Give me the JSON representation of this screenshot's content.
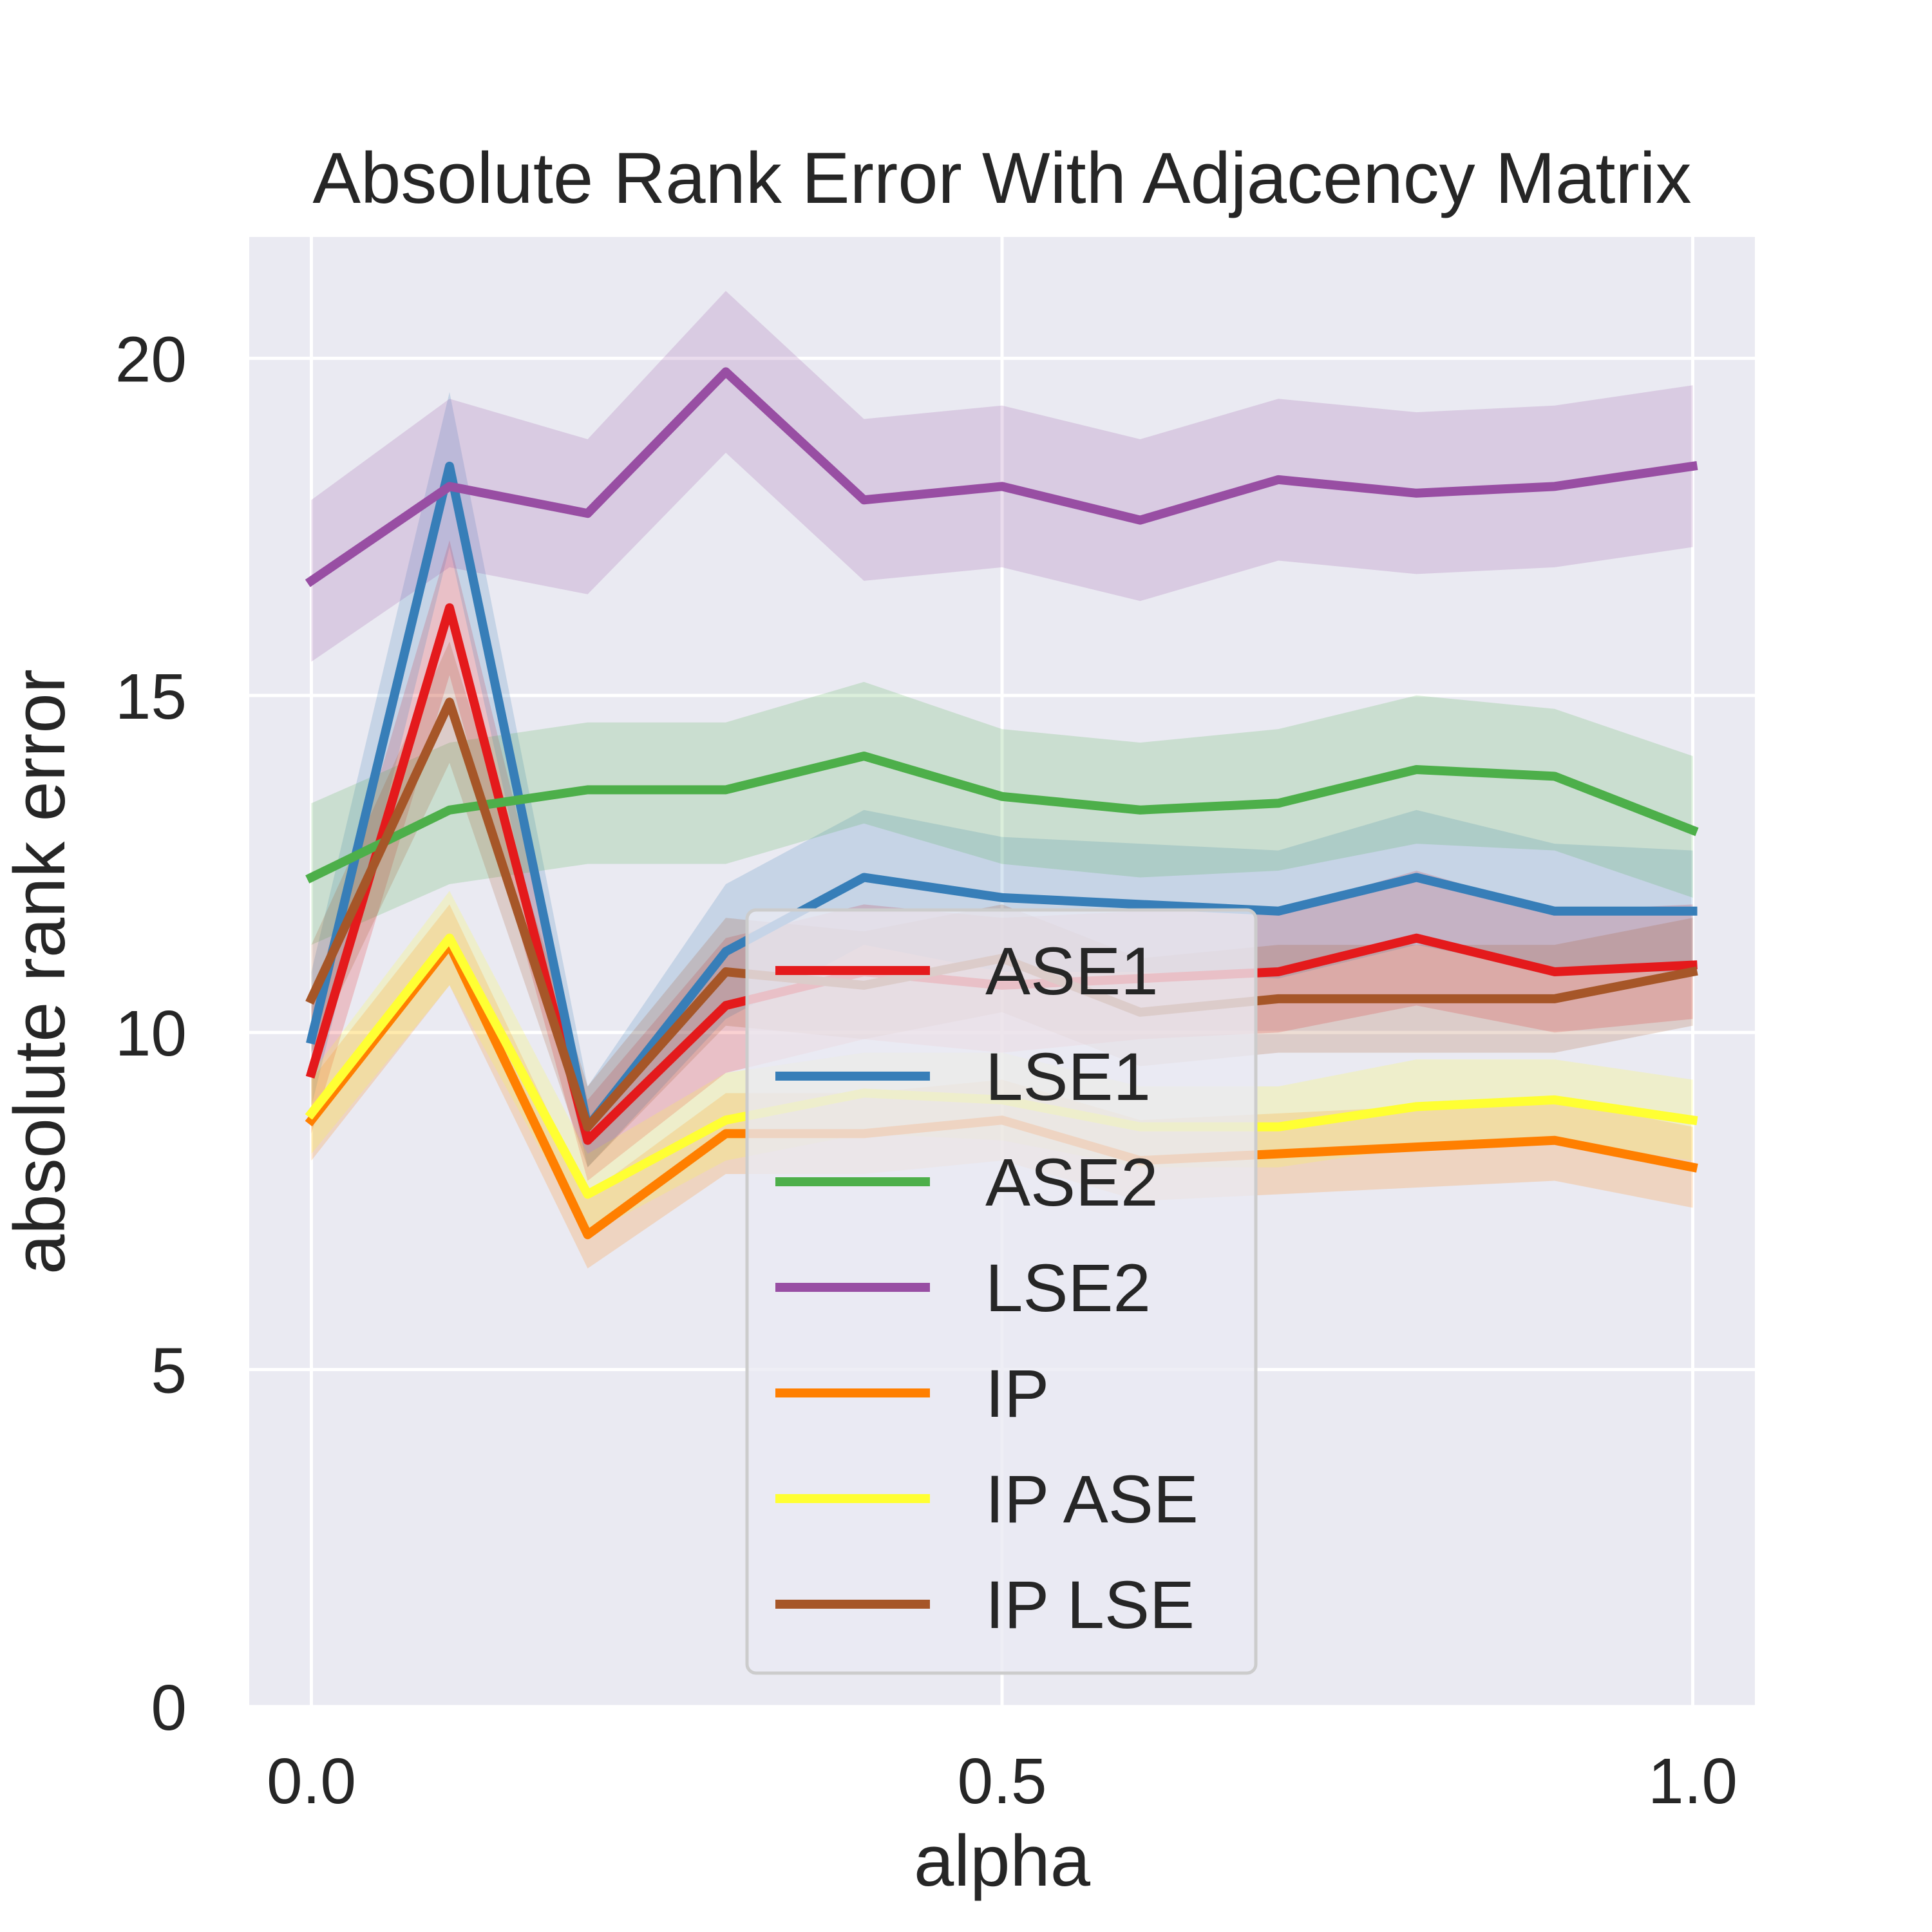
{
  "chart_data": {
    "type": "line",
    "title": "Absolute Rank Error With Adjacency Matrix",
    "xlabel": "alpha",
    "ylabel": "absolute rank error",
    "xlim": [
      -0.045,
      1.045
    ],
    "ylim": [
      0,
      21.8
    ],
    "xticks": [
      0.0,
      0.5,
      1.0
    ],
    "xtick_labels": [
      "0.0",
      "0.5",
      "1.0"
    ],
    "yticks": [
      0,
      5,
      10,
      15,
      20
    ],
    "ytick_labels": [
      "0",
      "5",
      "10",
      "15",
      "20"
    ],
    "grid": true,
    "legend_position": "lower-center",
    "x": [
      0.0,
      0.1,
      0.2,
      0.3,
      0.4,
      0.5,
      0.6,
      0.7,
      0.8,
      0.9,
      1.0
    ],
    "series": [
      {
        "name": "ASE1",
        "color": "#e41a1c",
        "values": [
          9.4,
          16.3,
          8.4,
          10.4,
          10.9,
          10.7,
          10.8,
          10.9,
          11.4,
          10.9,
          11.0
        ],
        "lower": [
          8.5,
          15.3,
          7.8,
          9.4,
          9.9,
          9.7,
          9.9,
          10.0,
          10.4,
          10.0,
          10.2
        ],
        "upper": [
          10.4,
          17.3,
          9.0,
          11.4,
          11.9,
          11.7,
          11.8,
          11.8,
          12.4,
          11.8,
          11.9
        ]
      },
      {
        "name": "LSE1",
        "color": "#377eb8",
        "values": [
          9.9,
          18.4,
          8.6,
          11.2,
          12.3,
          12.0,
          11.9,
          11.8,
          12.3,
          11.8,
          11.8
        ],
        "lower": [
          8.9,
          17.2,
          8.0,
          10.2,
          11.3,
          10.9,
          10.9,
          10.8,
          11.3,
          10.9,
          10.9
        ],
        "upper": [
          10.9,
          19.5,
          9.2,
          12.2,
          13.3,
          12.9,
          12.8,
          12.7,
          13.3,
          12.8,
          12.7
        ]
      },
      {
        "name": "ASE2",
        "color": "#4daf4a",
        "values": [
          12.3,
          13.3,
          13.6,
          13.6,
          14.1,
          13.5,
          13.3,
          13.4,
          13.9,
          13.8,
          13.0
        ],
        "lower": [
          11.3,
          12.2,
          12.5,
          12.5,
          13.1,
          12.5,
          12.3,
          12.4,
          12.8,
          12.7,
          12.0
        ],
        "upper": [
          13.4,
          14.3,
          14.6,
          14.6,
          15.2,
          14.5,
          14.3,
          14.5,
          15.0,
          14.8,
          14.1
        ]
      },
      {
        "name": "LSE2",
        "color": "#984ea3",
        "values": [
          16.7,
          18.1,
          17.7,
          19.8,
          17.9,
          18.1,
          17.6,
          18.2,
          18.0,
          18.1,
          18.4
        ],
        "lower": [
          15.5,
          16.9,
          16.5,
          18.6,
          16.7,
          16.9,
          16.4,
          17.0,
          16.8,
          16.9,
          17.2
        ],
        "upper": [
          17.9,
          19.4,
          18.8,
          21.0,
          19.1,
          19.3,
          18.8,
          19.4,
          19.2,
          19.3,
          19.6
        ]
      },
      {
        "name": "IP",
        "color": "#ff7f00",
        "values": [
          8.7,
          11.3,
          7.0,
          8.5,
          8.5,
          8.7,
          8.1,
          8.2,
          8.3,
          8.4,
          8.0
        ],
        "lower": [
          8.1,
          10.7,
          6.5,
          7.9,
          7.9,
          8.1,
          7.5,
          7.6,
          7.7,
          7.8,
          7.4
        ],
        "upper": [
          9.3,
          11.9,
          7.6,
          9.1,
          9.1,
          9.3,
          8.7,
          8.8,
          8.9,
          9.0,
          8.6
        ]
      },
      {
        "name": "IP ASE",
        "color": "#ffff33",
        "values": [
          8.8,
          11.4,
          7.6,
          8.7,
          9.1,
          9.0,
          8.6,
          8.6,
          8.9,
          9.0,
          8.7
        ],
        "lower": [
          8.2,
          10.7,
          7.0,
          8.1,
          8.5,
          8.4,
          8.0,
          8.0,
          8.3,
          8.4,
          8.1
        ],
        "upper": [
          9.4,
          12.1,
          8.2,
          9.4,
          9.7,
          9.7,
          9.2,
          9.2,
          9.6,
          9.6,
          9.3
        ]
      },
      {
        "name": "IP LSE",
        "color": "#a65628",
        "values": [
          10.5,
          14.9,
          8.6,
          10.9,
          10.7,
          11.1,
          10.3,
          10.5,
          10.5,
          10.5,
          10.9
        ],
        "lower": [
          9.7,
          14.0,
          8.0,
          10.1,
          9.9,
          10.3,
          9.5,
          9.7,
          9.7,
          9.7,
          10.1
        ],
        "upper": [
          11.3,
          15.8,
          9.2,
          11.7,
          11.5,
          11.9,
          11.1,
          11.3,
          11.3,
          11.3,
          11.7
        ]
      }
    ]
  }
}
